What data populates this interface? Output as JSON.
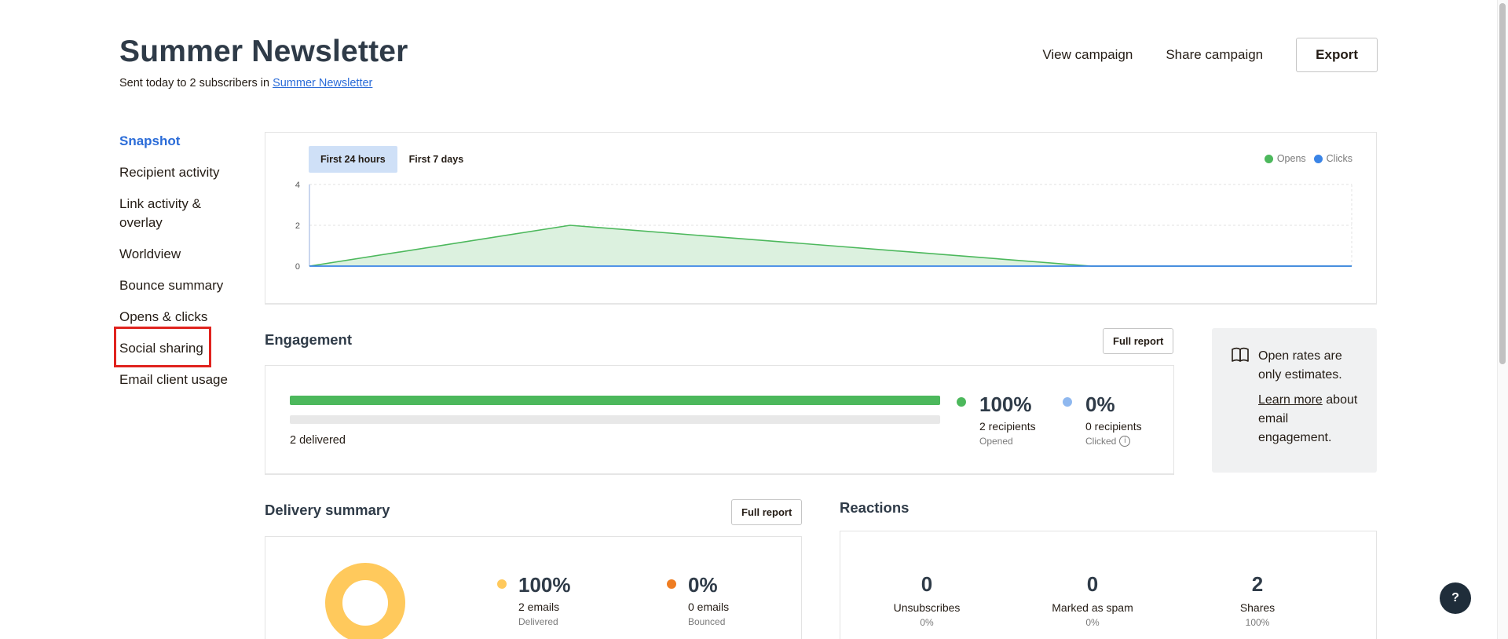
{
  "header": {
    "title": "Summer Newsletter",
    "subtitle_prefix": "Sent today to 2 subscribers in ",
    "subtitle_link": "Summer Newsletter",
    "view_campaign": "View campaign",
    "share_campaign": "Share campaign",
    "export": "Export"
  },
  "sidebar": {
    "items": [
      {
        "label": "Snapshot",
        "active": true
      },
      {
        "label": "Recipient activity"
      },
      {
        "label": "Link activity & overlay"
      },
      {
        "label": "Worldview"
      },
      {
        "label": "Bounce summary"
      },
      {
        "label": "Opens & clicks"
      },
      {
        "label": "Social sharing",
        "highlighted": true
      },
      {
        "label": "Email client usage"
      }
    ]
  },
  "chart": {
    "tabs": [
      "First 24 hours",
      "First 7 days"
    ],
    "active_tab": "First 24 hours",
    "legend": [
      "Opens",
      "Clicks"
    ],
    "colors": {
      "opens": "#4cb85c",
      "clicks": "#3a84e6",
      "opens_fill": "#dcf1df"
    }
  },
  "chart_data": {
    "type": "area",
    "x_ticks": [],
    "y_ticks": [
      "0",
      "2",
      "4"
    ],
    "ylim": [
      0,
      4
    ],
    "grid": true,
    "legend_position": "top-right",
    "x": [
      0,
      1,
      2,
      3,
      4
    ],
    "series": [
      {
        "name": "Opens",
        "values": [
          0,
          2,
          1,
          0,
          0
        ]
      },
      {
        "name": "Clicks",
        "values": [
          0,
          0,
          0,
          0,
          0
        ]
      }
    ]
  },
  "engagement": {
    "title": "Engagement",
    "full_report": "Full report",
    "delivered": "2 delivered",
    "delivered_fraction": 1.0,
    "opened": {
      "value": "100%",
      "sub": "2 recipients",
      "caption": "Opened",
      "color": "#4cb85c"
    },
    "clicked": {
      "value": "0%",
      "sub": "0 recipients",
      "caption": "Clicked",
      "color": "#8fb8ef"
    }
  },
  "tip": {
    "line1": "Open rates are only estimates.",
    "link": "Learn more",
    "line2": " about email engagement."
  },
  "delivery": {
    "title": "Delivery summary",
    "full_report": "Full report",
    "delivered": {
      "value": "100%",
      "sub": "2 emails",
      "caption": "Delivered",
      "color": "#ffc95c"
    },
    "bounced": {
      "value": "0%",
      "sub": "0 emails",
      "caption": "Bounced",
      "color": "#ef7d22"
    }
  },
  "reactions": {
    "title": "Reactions",
    "items": [
      {
        "num": "0",
        "label": "Unsubscribes",
        "pct": "0%"
      },
      {
        "num": "0",
        "label": "Marked as spam",
        "pct": "0%"
      },
      {
        "num": "2",
        "label": "Shares",
        "pct": "100%"
      }
    ]
  },
  "help": "?"
}
